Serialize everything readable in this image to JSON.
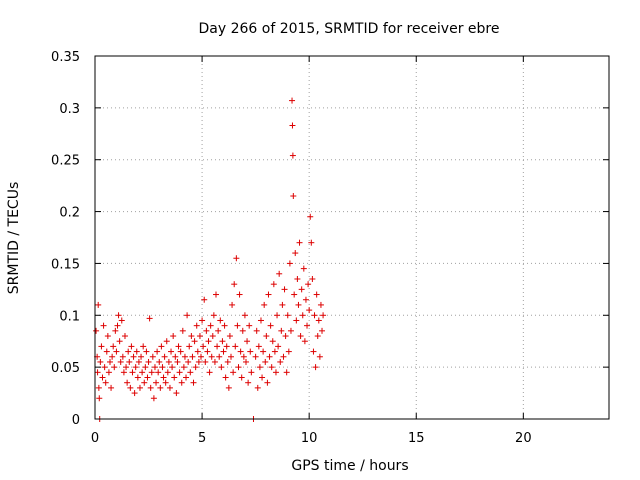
{
  "chart_data": {
    "type": "scatter",
    "title": "Day 266 of 2015, SRMTID for receiver ebre",
    "xlabel": "GPS time / hours",
    "ylabel": "SRMTID / TECUs",
    "xlim": [
      0,
      24
    ],
    "ylim": [
      0,
      0.35
    ],
    "xticks": [
      0,
      5,
      10,
      15,
      20
    ],
    "xtick_labels": [
      "0",
      "5",
      "10",
      "15",
      "20"
    ],
    "yticks": [
      0,
      0.05,
      0.1,
      0.15,
      0.2,
      0.25,
      0.3,
      0.35
    ],
    "ytick_labels": [
      "0",
      "0.05",
      "0.1",
      "0.15",
      "0.2",
      "0.25",
      "0.3",
      "0.35"
    ],
    "grid": true,
    "marker": "+",
    "color": "#dd0000",
    "series": [
      {
        "name": "SRMTID",
        "points": [
          [
            0.05,
            0.085
          ],
          [
            0.1,
            0.06
          ],
          [
            0.12,
            0.045
          ],
          [
            0.15,
            0.11
          ],
          [
            0.18,
            0.03
          ],
          [
            0.2,
            0.02
          ],
          [
            0.22,
            0.0
          ],
          [
            0.25,
            0.055
          ],
          [
            0.3,
            0.07
          ],
          [
            0.35,
            0.04
          ],
          [
            0.4,
            0.09
          ],
          [
            0.45,
            0.05
          ],
          [
            0.5,
            0.035
          ],
          [
            0.55,
            0.065
          ],
          [
            0.6,
            0.08
          ],
          [
            0.65,
            0.045
          ],
          [
            0.7,
            0.055
          ],
          [
            0.75,
            0.03
          ],
          [
            0.8,
            0.06
          ],
          [
            0.85,
            0.07
          ],
          [
            0.9,
            0.05
          ],
          [
            0.95,
            0.085
          ],
          [
            1.0,
            0.065
          ],
          [
            1.05,
            0.09
          ],
          [
            1.1,
            0.1
          ],
          [
            1.15,
            0.075
          ],
          [
            1.2,
            0.055
          ],
          [
            1.25,
            0.095
          ],
          [
            1.3,
            0.06
          ],
          [
            1.35,
            0.045
          ],
          [
            1.4,
            0.08
          ],
          [
            1.45,
            0.05
          ],
          [
            1.5,
            0.035
          ],
          [
            1.55,
            0.065
          ],
          [
            1.6,
            0.055
          ],
          [
            1.65,
            0.03
          ],
          [
            1.7,
            0.07
          ],
          [
            1.75,
            0.045
          ],
          [
            1.8,
            0.06
          ],
          [
            1.85,
            0.025
          ],
          [
            1.9,
            0.05
          ],
          [
            1.95,
            0.065
          ],
          [
            2.0,
            0.04
          ],
          [
            2.05,
            0.055
          ],
          [
            2.1,
            0.03
          ],
          [
            2.15,
            0.06
          ],
          [
            2.2,
            0.045
          ],
          [
            2.25,
            0.07
          ],
          [
            2.3,
            0.035
          ],
          [
            2.35,
            0.05
          ],
          [
            2.4,
            0.065
          ],
          [
            2.45,
            0.04
          ],
          [
            2.5,
            0.055
          ],
          [
            2.55,
            0.097
          ],
          [
            2.6,
            0.03
          ],
          [
            2.65,
            0.045
          ],
          [
            2.7,
            0.06
          ],
          [
            2.75,
            0.02
          ],
          [
            2.8,
            0.05
          ],
          [
            2.85,
            0.035
          ],
          [
            2.9,
            0.065
          ],
          [
            2.95,
            0.045
          ],
          [
            3.0,
            0.055
          ],
          [
            3.05,
            0.03
          ],
          [
            3.1,
            0.07
          ],
          [
            3.15,
            0.05
          ],
          [
            3.2,
            0.04
          ],
          [
            3.25,
            0.06
          ],
          [
            3.3,
            0.035
          ],
          [
            3.35,
            0.075
          ],
          [
            3.4,
            0.045
          ],
          [
            3.45,
            0.055
          ],
          [
            3.5,
            0.03
          ],
          [
            3.55,
            0.065
          ],
          [
            3.6,
            0.05
          ],
          [
            3.65,
            0.08
          ],
          [
            3.7,
            0.04
          ],
          [
            3.75,
            0.06
          ],
          [
            3.8,
            0.025
          ],
          [
            3.85,
            0.055
          ],
          [
            3.9,
            0.07
          ],
          [
            3.95,
            0.045
          ],
          [
            4.0,
            0.065
          ],
          [
            4.05,
            0.035
          ],
          [
            4.1,
            0.085
          ],
          [
            4.15,
            0.05
          ],
          [
            4.2,
            0.06
          ],
          [
            4.25,
            0.04
          ],
          [
            4.3,
            0.1
          ],
          [
            4.35,
            0.055
          ],
          [
            4.4,
            0.07
          ],
          [
            4.45,
            0.045
          ],
          [
            4.5,
            0.08
          ],
          [
            4.55,
            0.06
          ],
          [
            4.6,
            0.035
          ],
          [
            4.65,
            0.075
          ],
          [
            4.7,
            0.05
          ],
          [
            4.75,
            0.09
          ],
          [
            4.8,
            0.065
          ],
          [
            4.85,
            0.055
          ],
          [
            4.9,
            0.08
          ],
          [
            4.95,
            0.06
          ],
          [
            5.0,
            0.095
          ],
          [
            5.05,
            0.07
          ],
          [
            5.1,
            0.115
          ],
          [
            5.15,
            0.055
          ],
          [
            5.2,
            0.085
          ],
          [
            5.25,
            0.065
          ],
          [
            5.3,
            0.075
          ],
          [
            5.35,
            0.045
          ],
          [
            5.4,
            0.09
          ],
          [
            5.45,
            0.06
          ],
          [
            5.5,
            0.08
          ],
          [
            5.55,
            0.1
          ],
          [
            5.6,
            0.055
          ],
          [
            5.65,
            0.12
          ],
          [
            5.7,
            0.07
          ],
          [
            5.75,
            0.085
          ],
          [
            5.8,
            0.06
          ],
          [
            5.85,
            0.095
          ],
          [
            5.9,
            0.05
          ],
          [
            5.95,
            0.075
          ],
          [
            6.0,
            0.065
          ],
          [
            6.05,
            0.09
          ],
          [
            6.1,
            0.04
          ],
          [
            6.15,
            0.07
          ],
          [
            6.2,
            0.055
          ],
          [
            6.25,
            0.03
          ],
          [
            6.3,
            0.08
          ],
          [
            6.35,
            0.06
          ],
          [
            6.4,
            0.11
          ],
          [
            6.45,
            0.045
          ],
          [
            6.5,
            0.13
          ],
          [
            6.55,
            0.07
          ],
          [
            6.6,
            0.155
          ],
          [
            6.65,
            0.09
          ],
          [
            6.7,
            0.05
          ],
          [
            6.75,
            0.12
          ],
          [
            6.8,
            0.065
          ],
          [
            6.85,
            0.04
          ],
          [
            6.9,
            0.085
          ],
          [
            6.95,
            0.06
          ],
          [
            7.0,
            0.1
          ],
          [
            7.05,
            0.055
          ],
          [
            7.1,
            0.075
          ],
          [
            7.15,
            0.035
          ],
          [
            7.2,
            0.09
          ],
          [
            7.25,
            0.065
          ],
          [
            7.3,
            0.045
          ],
          [
            7.4,
            0.0
          ],
          [
            7.5,
            0.06
          ],
          [
            7.55,
            0.085
          ],
          [
            7.6,
            0.03
          ],
          [
            7.65,
            0.07
          ],
          [
            7.7,
            0.05
          ],
          [
            7.75,
            0.095
          ],
          [
            7.8,
            0.04
          ],
          [
            7.85,
            0.065
          ],
          [
            7.9,
            0.11
          ],
          [
            7.95,
            0.055
          ],
          [
            8.0,
            0.08
          ],
          [
            8.05,
            0.035
          ],
          [
            8.1,
            0.12
          ],
          [
            8.15,
            0.06
          ],
          [
            8.2,
            0.09
          ],
          [
            8.25,
            0.05
          ],
          [
            8.3,
            0.075
          ],
          [
            8.35,
            0.13
          ],
          [
            8.4,
            0.065
          ],
          [
            8.45,
            0.045
          ],
          [
            8.5,
            0.1
          ],
          [
            8.55,
            0.07
          ],
          [
            8.6,
            0.14
          ],
          [
            8.65,
            0.055
          ],
          [
            8.7,
            0.085
          ],
          [
            8.75,
            0.11
          ],
          [
            8.8,
            0.06
          ],
          [
            8.85,
            0.125
          ],
          [
            8.9,
            0.08
          ],
          [
            8.95,
            0.045
          ],
          [
            9.0,
            0.1
          ],
          [
            9.05,
            0.065
          ],
          [
            9.1,
            0.15
          ],
          [
            9.15,
            0.085
          ],
          [
            9.2,
            0.307
          ],
          [
            9.22,
            0.283
          ],
          [
            9.24,
            0.254
          ],
          [
            9.26,
            0.215
          ],
          [
            9.3,
            0.12
          ],
          [
            9.35,
            0.16
          ],
          [
            9.4,
            0.095
          ],
          [
            9.45,
            0.135
          ],
          [
            9.5,
            0.11
          ],
          [
            9.55,
            0.17
          ],
          [
            9.6,
            0.08
          ],
          [
            9.65,
            0.125
          ],
          [
            9.7,
            0.1
          ],
          [
            9.75,
            0.145
          ],
          [
            9.8,
            0.075
          ],
          [
            9.85,
            0.115
          ],
          [
            9.9,
            0.09
          ],
          [
            9.95,
            0.13
          ],
          [
            10.0,
            0.105
          ],
          [
            10.05,
            0.195
          ],
          [
            10.1,
            0.17
          ],
          [
            10.15,
            0.135
          ],
          [
            10.2,
            0.065
          ],
          [
            10.25,
            0.1
          ],
          [
            10.3,
            0.05
          ],
          [
            10.35,
            0.12
          ],
          [
            10.4,
            0.08
          ],
          [
            10.45,
            0.095
          ],
          [
            10.5,
            0.06
          ],
          [
            10.55,
            0.11
          ],
          [
            10.6,
            0.085
          ],
          [
            10.65,
            0.1
          ]
        ]
      }
    ]
  }
}
